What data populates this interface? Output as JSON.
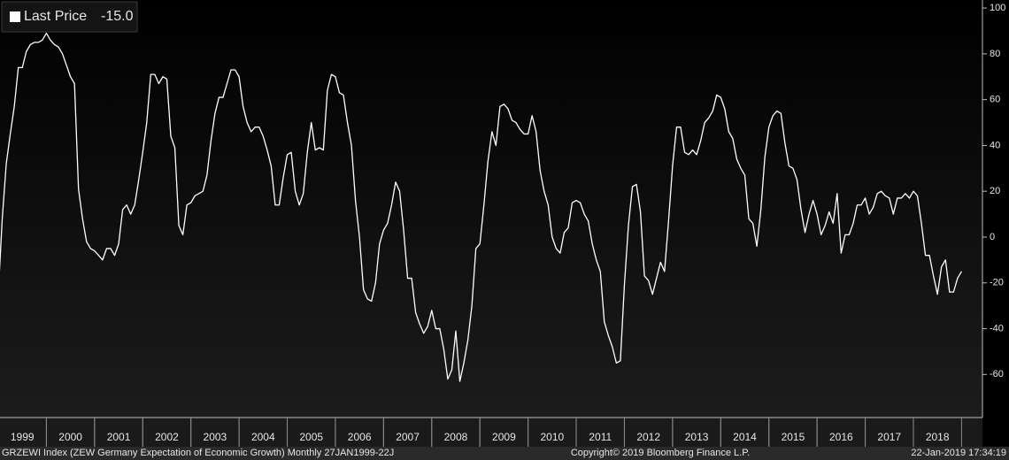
{
  "chart_data": {
    "type": "line",
    "categories": [
      null,
      null,
      null,
      null,
      null,
      null,
      "1999",
      null,
      null,
      null,
      null,
      null,
      null,
      null,
      null,
      null,
      null,
      null,
      "2000",
      null,
      null,
      null,
      null,
      null,
      null,
      null,
      null,
      null,
      null,
      null,
      "2001",
      null,
      null,
      null,
      null,
      null,
      null,
      null,
      null,
      null,
      null,
      null,
      "2002",
      null,
      null,
      null,
      null,
      null,
      null,
      null,
      null,
      null,
      null,
      null,
      "2003",
      null,
      null,
      null,
      null,
      null,
      null,
      null,
      null,
      null,
      null,
      null,
      "2004",
      null,
      null,
      null,
      null,
      null,
      null,
      null,
      null,
      null,
      null,
      null,
      "2005",
      null,
      null,
      null,
      null,
      null,
      null,
      null,
      null,
      null,
      null,
      null,
      "2006",
      null,
      null,
      null,
      null,
      null,
      null,
      null,
      null,
      null,
      null,
      null,
      "2007",
      null,
      null,
      null,
      null,
      null,
      null,
      null,
      null,
      null,
      null,
      null,
      "2008",
      null,
      null,
      null,
      null,
      null,
      null,
      null,
      null,
      null,
      null,
      null,
      "2009",
      null,
      null,
      null,
      null,
      null,
      null,
      null,
      null,
      null,
      null,
      null,
      "2010",
      null,
      null,
      null,
      null,
      null,
      null,
      null,
      null,
      null,
      null,
      null,
      "2011",
      null,
      null,
      null,
      null,
      null,
      null,
      null,
      null,
      null,
      null,
      null,
      "2012",
      null,
      null,
      null,
      null,
      null,
      null,
      null,
      null,
      null,
      null,
      null,
      "2013",
      null,
      null,
      null,
      null,
      null,
      null,
      null,
      null,
      null,
      null,
      null,
      "2014",
      null,
      null,
      null,
      null,
      null,
      null,
      null,
      null,
      null,
      null,
      null,
      "2015",
      null,
      null,
      null,
      null,
      null,
      null,
      null,
      null,
      null,
      null,
      null,
      "2016",
      null,
      null,
      null,
      null,
      null,
      null,
      null,
      null,
      null,
      null,
      null,
      "2017",
      null,
      null,
      null,
      null,
      null,
      null,
      null,
      null,
      null,
      null,
      null,
      "2018",
      null,
      null,
      null,
      null,
      null,
      null
    ],
    "series": [
      {
        "name": "Last Price",
        "color": "#ffffff",
        "values": [
          -25,
          8,
          32,
          45,
          57,
          74,
          74,
          81,
          84,
          85,
          85,
          86,
          89,
          86,
          84,
          83,
          80,
          75,
          70,
          67,
          21,
          8,
          -2,
          -5,
          -6,
          -8,
          -10,
          -5,
          -5,
          -8,
          -3,
          12,
          14,
          10,
          14,
          25,
          37,
          50,
          71,
          71,
          67,
          70,
          69,
          44,
          39,
          5,
          1,
          14,
          15,
          18,
          19,
          20,
          27,
          42,
          54,
          61,
          61,
          67,
          73,
          73,
          70,
          57,
          50,
          46,
          48,
          48,
          44,
          38,
          31,
          14,
          14,
          26,
          36,
          37,
          20,
          14,
          19,
          37,
          50,
          38,
          39,
          38,
          64,
          71,
          70,
          63,
          62,
          50,
          40,
          16,
          0,
          -23,
          -27,
          -28,
          -20,
          -3,
          3,
          6,
          14,
          24,
          20,
          3,
          -18,
          -18,
          -33,
          -38,
          -42,
          -39,
          -32,
          -40,
          -40,
          -49,
          -62,
          -58,
          -41,
          -63,
          -55,
          -45,
          -30,
          -5,
          -3,
          14,
          33,
          46,
          40,
          57,
          58,
          56,
          51,
          50,
          47,
          45,
          45,
          53,
          46,
          29,
          20,
          14,
          0,
          -5,
          -7,
          2,
          4,
          15,
          16,
          15,
          10,
          7,
          -3,
          -10,
          -15,
          -37,
          -43,
          -48,
          -55,
          -54,
          -21,
          5,
          22,
          23,
          11,
          -17,
          -19,
          -25,
          -18,
          -11,
          -15,
          7,
          31,
          48,
          48,
          37,
          36,
          38,
          36,
          42,
          50,
          52,
          55,
          62,
          61,
          56,
          46,
          43,
          34,
          30,
          27,
          8,
          6,
          -4,
          12,
          35,
          48,
          53,
          55,
          54,
          41,
          31,
          30,
          25,
          12,
          2,
          10,
          16,
          10,
          1,
          5,
          11,
          6,
          19,
          -7,
          1,
          1,
          6,
          14,
          14,
          17,
          10,
          13,
          19,
          20,
          18,
          17,
          10,
          17,
          17,
          19,
          17,
          20,
          18,
          6,
          -8,
          -8,
          -17,
          -25,
          -13,
          -10,
          -24,
          -24,
          -18,
          -15
        ]
      }
    ],
    "last_price": {
      "value": -15,
      "label": "-15.0"
    },
    "ylim": [
      -78.8,
      103.5
    ],
    "yticks": [
      100,
      80,
      60,
      40,
      20,
      0,
      -20,
      -40,
      -60
    ],
    "footer": {
      "description": "GRZEWI Index (ZEW Germany Expectation of Economic Growth)  Monthly 27JAN1999-22J",
      "copyright": "Copyright© 2019 Bloomberg Finance L.P.",
      "timestamp": "22-Jan-2019 17:34:19"
    }
  }
}
